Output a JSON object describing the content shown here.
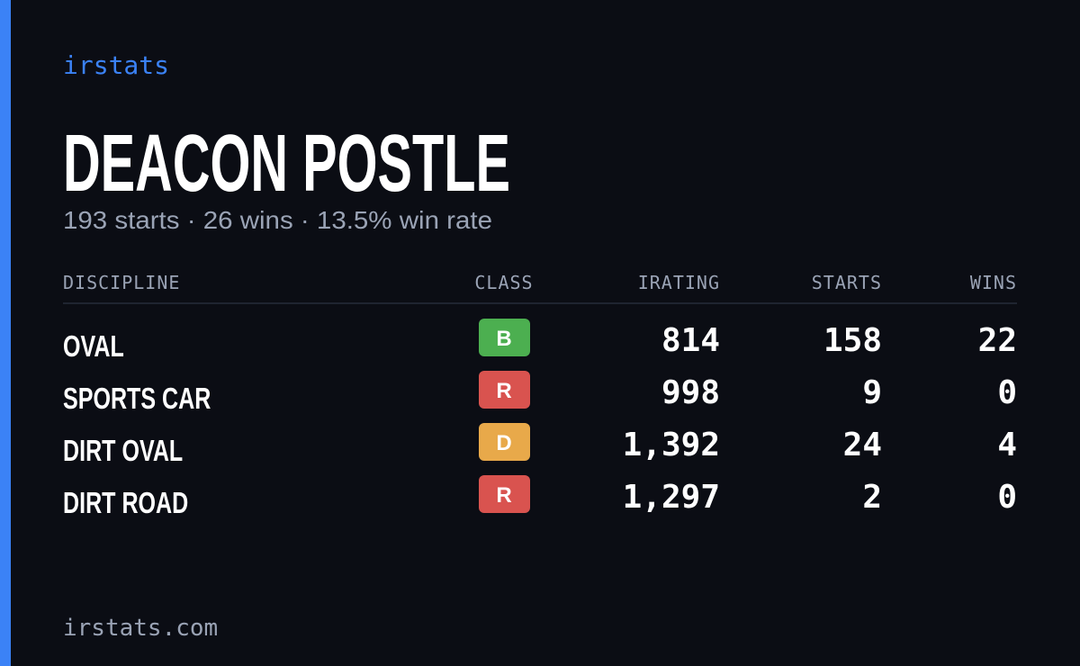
{
  "brand": "irstats",
  "driver": {
    "name": "DEACON POSTLE",
    "summary": "193 starts · 26 wins · 13.5% win rate"
  },
  "table": {
    "headers": [
      "DISCIPLINE",
      "CLASS",
      "IRATING",
      "STARTS",
      "WINS"
    ],
    "rows": [
      {
        "discipline": "OVAL",
        "class": "B",
        "class_color": "#4caf50",
        "irating": "814",
        "starts": "158",
        "wins": "22"
      },
      {
        "discipline": "SPORTS CAR",
        "class": "R",
        "class_color": "#d9534f",
        "irating": "998",
        "starts": "9",
        "wins": "0"
      },
      {
        "discipline": "DIRT OVAL",
        "class": "D",
        "class_color": "#e8a94a",
        "irating": "1,392",
        "starts": "24",
        "wins": "4"
      },
      {
        "discipline": "DIRT ROAD",
        "class": "R",
        "class_color": "#d9534f",
        "irating": "1,297",
        "starts": "2",
        "wins": "0"
      }
    ]
  },
  "footer": "irstats.com"
}
